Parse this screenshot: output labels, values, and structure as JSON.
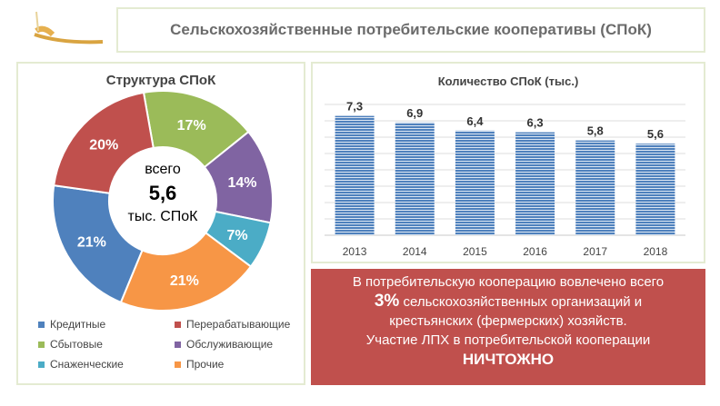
{
  "title": "Сельскохозяйственные потребительские кооперативы (СПоК)",
  "chart_data": [
    {
      "type": "pie",
      "title": "Структура СПоК",
      "center_text": [
        "всего",
        "5,6",
        "тыс. СПоК"
      ],
      "slices": [
        {
          "name": "Сбытовые",
          "value": 17,
          "label": "17%",
          "color": "#9bbb59"
        },
        {
          "name": "Обслуживающие",
          "value": 14,
          "label": "14%",
          "color": "#8064a2"
        },
        {
          "name": "Снаженческие",
          "value": 7,
          "label": "7%",
          "color": "#4bacc6"
        },
        {
          "name": "Прочие",
          "value": 21,
          "label": "21%",
          "color": "#f79646"
        },
        {
          "name": "Кредитные",
          "value": 21,
          "label": "21%",
          "color": "#4f81bd"
        },
        {
          "name": "Перерабатывающие",
          "value": 20,
          "label": "20%",
          "color": "#c0504d"
        }
      ],
      "legend": [
        "Кредитные",
        "Перерабатывающие",
        "Сбытовые",
        "Обслуживающие",
        "Снаженческие",
        "Прочие"
      ],
      "legend_placement": "bottom"
    },
    {
      "type": "bar",
      "title": "Количество СПоК (тыс.)",
      "categories": [
        "2013",
        "2014",
        "2015",
        "2016",
        "2017",
        "2018"
      ],
      "values": [
        7.3,
        6.9,
        6.4,
        6.3,
        5.8,
        5.6
      ],
      "data_labels": [
        "7,3",
        "6,9",
        "6,4",
        "6,3",
        "5,8",
        "5,6"
      ],
      "ylim": [
        0,
        8
      ],
      "grid": true,
      "color": "#4f81bd"
    }
  ],
  "callout": {
    "line1": "В потребительскую кооперацию вовлечено всего",
    "highlight": "3%",
    "line2": " сельскохозяйственных организаций и",
    "line3": "крестьянских (фермерских) хозяйств.",
    "line4": "Участие ЛПХ в потребительской кооперации",
    "emphasis": "НИЧТОЖНО",
    "color": "#c0504d"
  }
}
